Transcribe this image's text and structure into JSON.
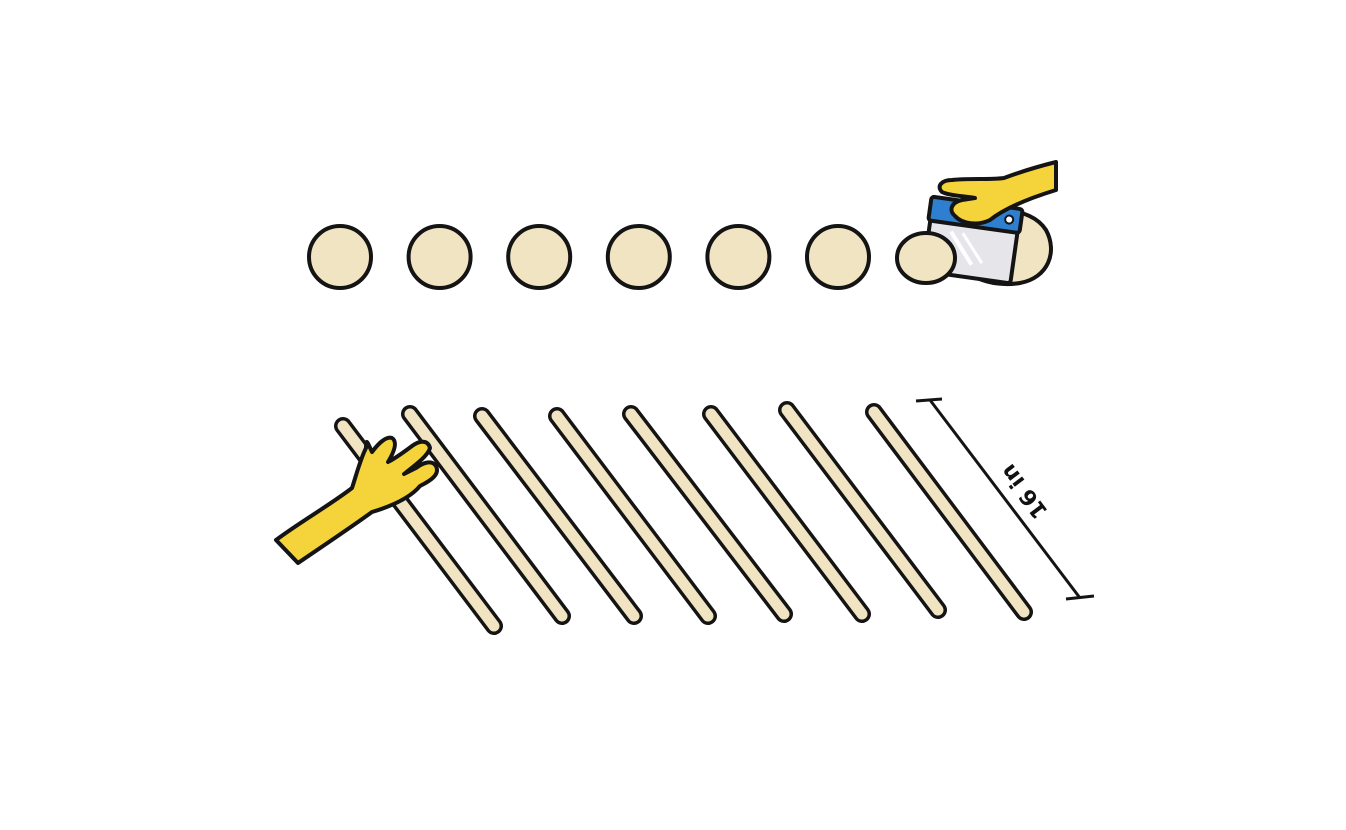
{
  "colors": {
    "dough": "#f0e4c2",
    "outline": "#141414",
    "hand": "#f5d33a",
    "scraper_handle": "#2f7fd0",
    "scraper_blade": "#e6e6ea"
  },
  "dough_balls_count": 6,
  "dough_ropes_count": 8,
  "measurement": {
    "label": "16 in"
  },
  "icons": {
    "scraper_hand": "hand-with-bench-scraper-icon",
    "rolling_hand": "hand-rolling-dough-icon"
  }
}
